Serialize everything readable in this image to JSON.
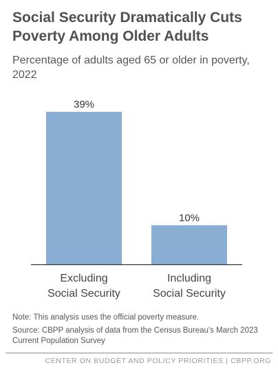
{
  "header": {
    "title": "Social Security Dramatically Cuts Poverty Among Older Adults",
    "subtitle": "Percentage of adults aged 65 or older in poverty, 2022"
  },
  "chart_data": {
    "type": "bar",
    "categories": [
      "Excluding Social Security",
      "Including Social Security"
    ],
    "category_lines": [
      [
        "Excluding",
        "Social Security"
      ],
      [
        "Including",
        "Social Security"
      ]
    ],
    "values": [
      39,
      10
    ],
    "value_labels": [
      "39%",
      "10%"
    ],
    "ylim": [
      0,
      45
    ],
    "grid": false,
    "bar_color": "#8aaed3"
  },
  "notes": {
    "note": "Note: This analysis uses the official poverty measure.",
    "source": "Source: CBPP analysis of data from the Census Bureau's March 2023 Current Population Survey"
  },
  "footer": {
    "org": "CENTER ON BUDGET AND POLICY PRIORITIES | CBPP.ORG"
  }
}
